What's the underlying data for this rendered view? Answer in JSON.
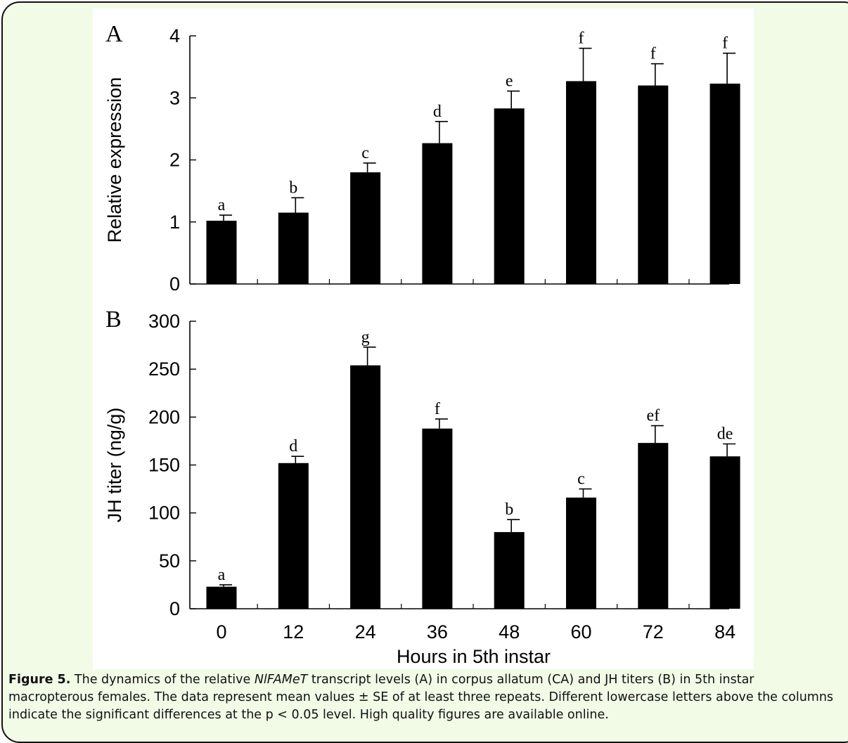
{
  "chart_data": [
    {
      "panel_label": "A",
      "type": "bar",
      "ylabel": "Relative expression",
      "ylim": [
        0,
        4
      ],
      "yticks": [
        0,
        1,
        2,
        3,
        4
      ],
      "categories": [
        "0",
        "12",
        "24",
        "36",
        "48",
        "60",
        "72",
        "84"
      ],
      "values": [
        1.02,
        1.15,
        1.8,
        2.27,
        2.83,
        3.27,
        3.2,
        3.23
      ],
      "errors": [
        0.09,
        0.24,
        0.15,
        0.35,
        0.28,
        0.53,
        0.35,
        0.49
      ],
      "significance_letters": [
        "a",
        "b",
        "c",
        "d",
        "e",
        "f",
        "f",
        "f"
      ],
      "bar_color": "#000000"
    },
    {
      "panel_label": "B",
      "type": "bar",
      "ylabel": "JH titer (ng/g)",
      "xlabel": "Hours in 5th instar",
      "ylim": [
        0,
        300
      ],
      "yticks": [
        0,
        50,
        100,
        150,
        200,
        250,
        300
      ],
      "categories": [
        "0",
        "12",
        "24",
        "36",
        "48",
        "60",
        "72",
        "84"
      ],
      "values": [
        23,
        152,
        254,
        188,
        80,
        116,
        173,
        159
      ],
      "errors": [
        2,
        7,
        19,
        10,
        13,
        9,
        18,
        13
      ],
      "significance_letters": [
        "a",
        "d",
        "g",
        "f",
        "b",
        "c",
        "ef",
        "de"
      ],
      "bar_color": "#000000"
    }
  ],
  "caption": {
    "label": "Figure 5.",
    "text_part1": " The dynamics of the relative ",
    "gene_name": "NlFAMeT",
    "text_part2": " transcript levels (A) in corpus allatum (CA) and JH titers (B) in 5th instar macropterous females. The data represent mean values ± SE of at least three repeats. Different lowercase letters above the columns indicate the significant differences at the p < 0.05 level. High quality figures are available online."
  },
  "colors": {
    "frame_background": "#f1fbe6",
    "plot_background": "#ffffff",
    "border": "#111111"
  }
}
